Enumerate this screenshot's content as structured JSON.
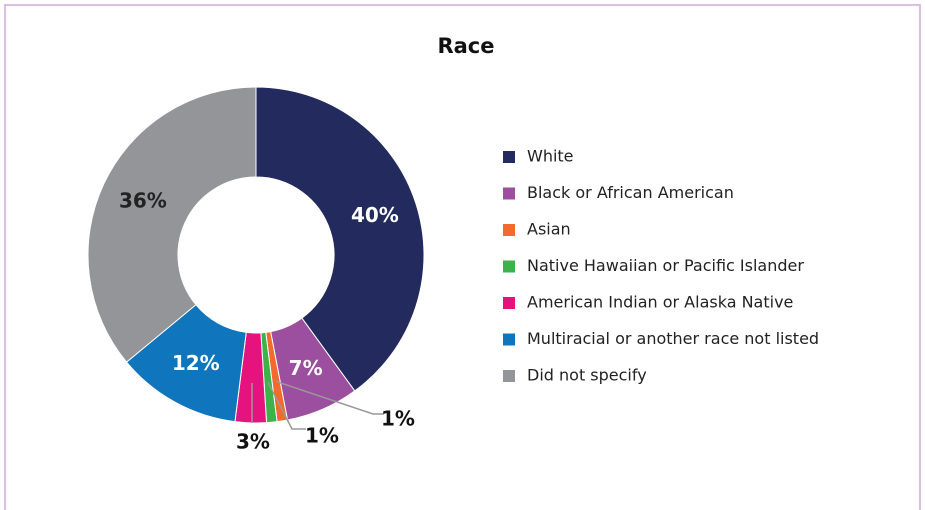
{
  "chart_data": {
    "type": "donut",
    "title": "Race",
    "categories": [
      "White",
      "Black or African American",
      "Asian",
      "Native Hawaiian or Pacific Islander",
      "American Indian or Alaska Native",
      "Multiracial or another race not listed",
      "Did not specify"
    ],
    "values": [
      40,
      7,
      1,
      1,
      3,
      12,
      36
    ],
    "value_labels": [
      "40%",
      "7%",
      "1%",
      "1%",
      "3%",
      "12%",
      "36%"
    ],
    "colors": [
      "#232a5e",
      "#9b4f9e",
      "#f26a2e",
      "#3db24a",
      "#e6137e",
      "#0f75bc",
      "#939598"
    ],
    "legend": "right"
  }
}
